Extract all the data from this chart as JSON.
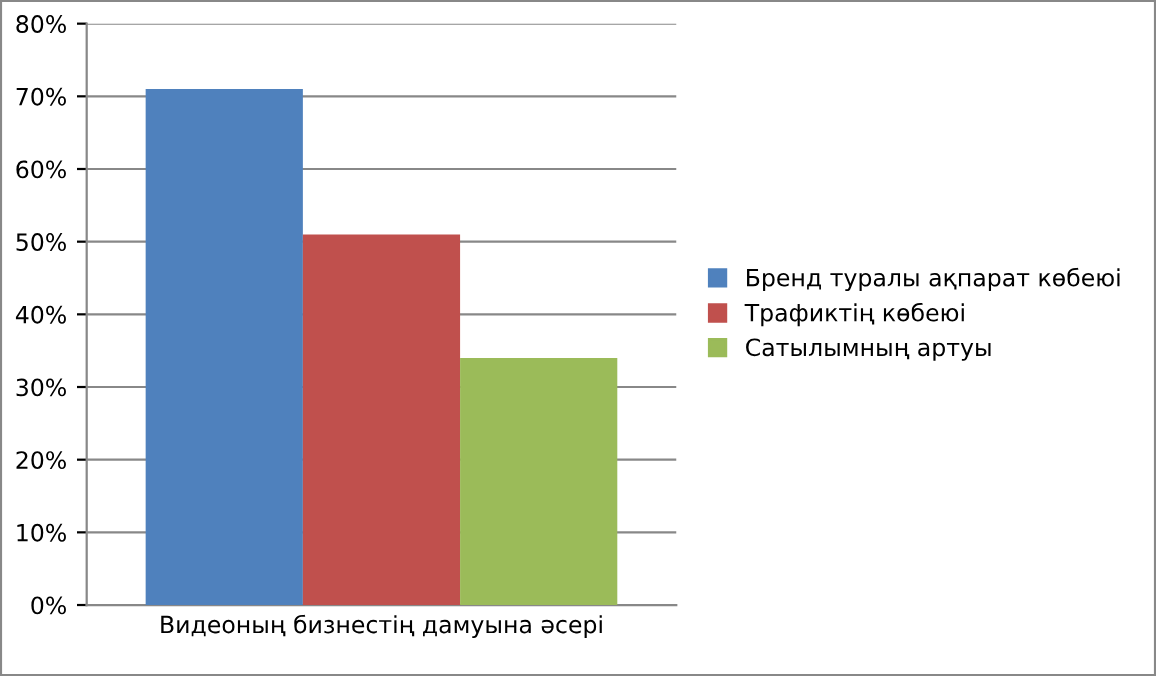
{
  "chart_data": {
    "type": "bar",
    "categories": [
      "Видеоның бизнестің дамуына әсері"
    ],
    "series": [
      {
        "name": "Бренд туралы ақпарат көбеюі",
        "color": "#4f81bd",
        "values": [
          71
        ]
      },
      {
        "name": "Трафиктің көбеюі",
        "color": "#c0504d",
        "values": [
          51
        ]
      },
      {
        "name": "Сатылымның артуы",
        "color": "#9bbb59",
        "values": [
          34
        ]
      }
    ],
    "ylim": [
      0,
      80
    ],
    "yticks": [
      {
        "value": 0,
        "label": "0%"
      },
      {
        "value": 10,
        "label": "10%"
      },
      {
        "value": 20,
        "label": "20%"
      },
      {
        "value": 30,
        "label": "30%"
      },
      {
        "value": 40,
        "label": "40%"
      },
      {
        "value": 50,
        "label": "50%"
      },
      {
        "value": 60,
        "label": "60%"
      },
      {
        "value": 70,
        "label": "70%"
      },
      {
        "value": 80,
        "label": "80%"
      }
    ],
    "grid": "y",
    "legend": "right"
  }
}
